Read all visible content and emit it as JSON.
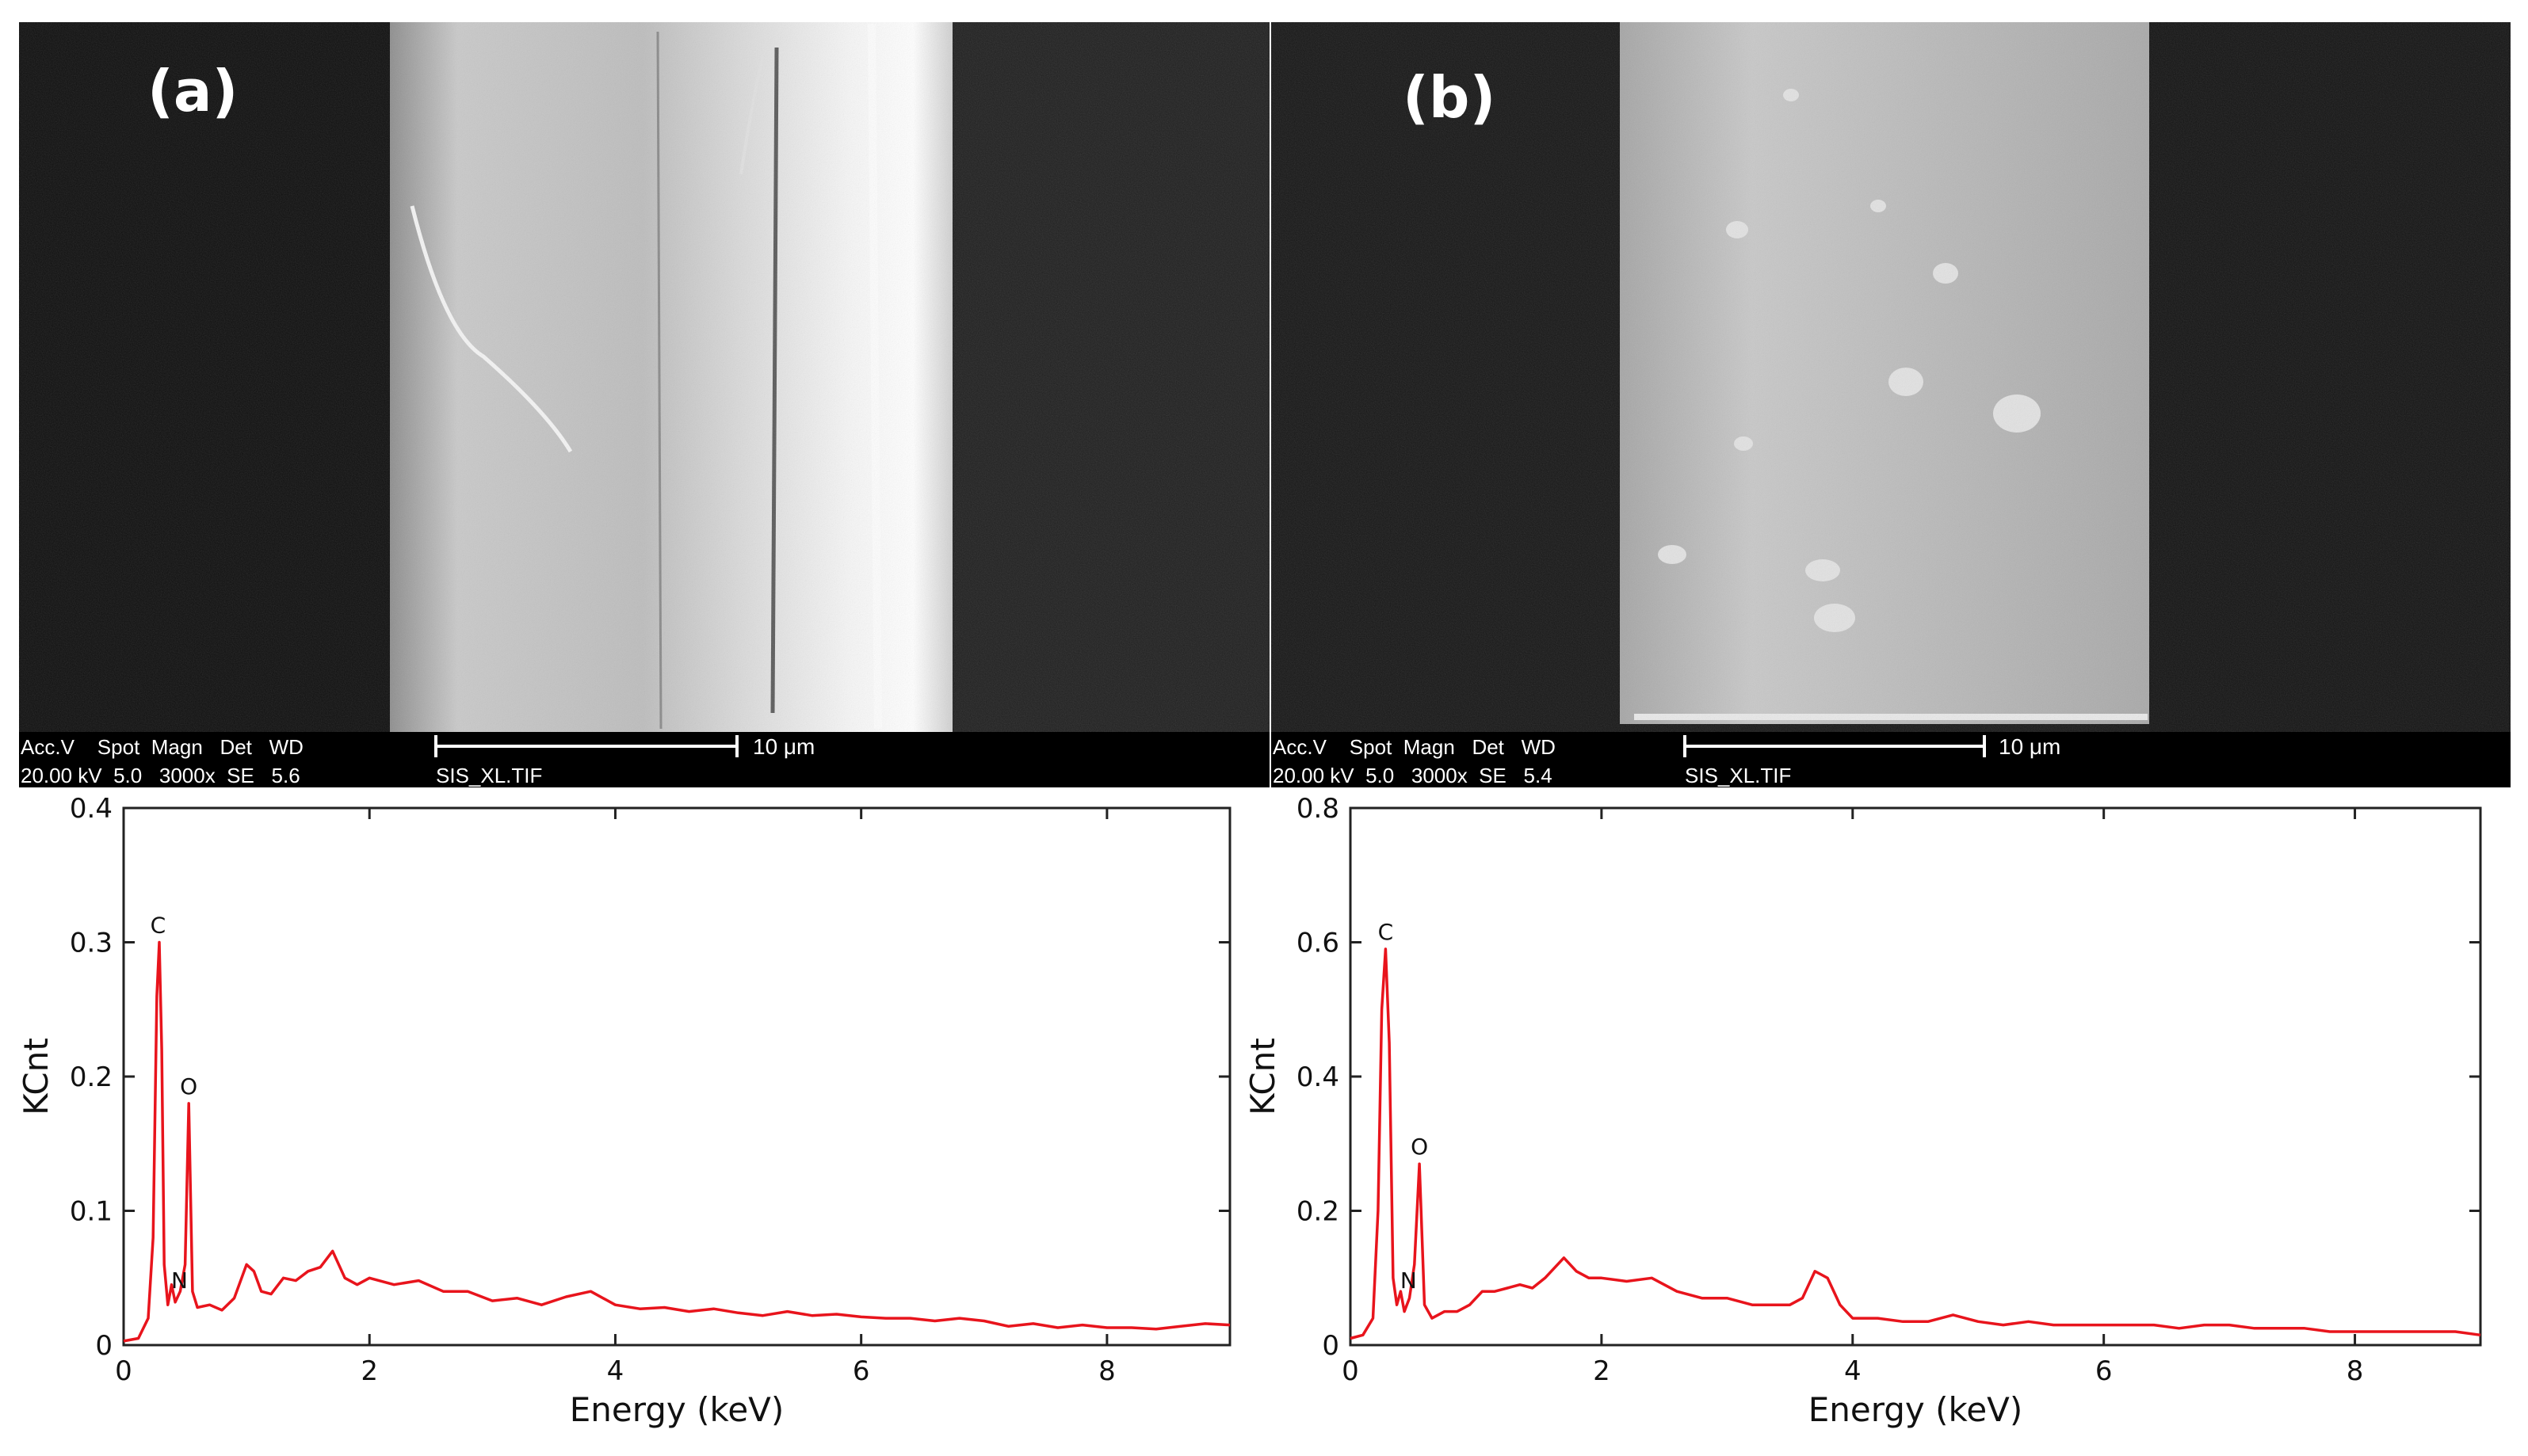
{
  "panels": [
    {
      "label": "(a)",
      "sem_info": {
        "header_line": "Acc.V    Spot  Magn   Det   WD",
        "value_line": "20.00 kV  5.0   3000x  SE   5.6",
        "scale_text": "10 μm",
        "file_text": "SIS_XL.TIF"
      }
    },
    {
      "label": "(b)",
      "sem_info": {
        "header_line": "Acc.V    Spot  Magn   Det   WD",
        "value_line": "20.00 kV  5.0   3000x  SE   5.4",
        "scale_text": "10 μm",
        "file_text": "SIS_XL.TIF"
      }
    }
  ],
  "chart_data": [
    {
      "type": "line",
      "title": "",
      "xlabel": "Energy (keV)",
      "ylabel": "KCnt",
      "xlim": [
        0,
        9
      ],
      "ylim": [
        0,
        0.4
      ],
      "xticks": [
        0,
        2,
        4,
        6,
        8
      ],
      "xtick_labels": [
        "0",
        "2",
        "4",
        "6",
        "8"
      ],
      "yticks": [
        0,
        0.1,
        0.2,
        0.3,
        0.4
      ],
      "ytick_labels": [
        "0",
        "0.1",
        "0.2",
        "0.3",
        "0.4"
      ],
      "line_color": "#e8141c",
      "peaks": [
        {
          "label": "C",
          "x": 0.28,
          "y": 0.3
        },
        {
          "label": "N",
          "x": 0.39,
          "y": 0.04
        },
        {
          "label": "O",
          "x": 0.53,
          "y": 0.18
        }
      ],
      "series": [
        {
          "x": [
            0,
            0.12,
            0.2,
            0.24,
            0.27,
            0.29,
            0.31,
            0.33,
            0.36,
            0.39,
            0.42,
            0.46,
            0.5,
            0.53,
            0.56,
            0.6,
            0.7,
            0.8,
            0.9,
            1.0,
            1.06,
            1.12,
            1.2,
            1.3,
            1.4,
            1.5,
            1.6,
            1.7,
            1.8,
            1.9,
            2.0,
            2.2,
            2.4,
            2.6,
            2.8,
            3.0,
            3.2,
            3.4,
            3.6,
            3.8,
            4.0,
            4.2,
            4.4,
            4.6,
            4.8,
            5.0,
            5.2,
            5.4,
            5.6,
            5.8,
            6.0,
            6.2,
            6.4,
            6.6,
            6.8,
            7.0,
            7.2,
            7.4,
            7.6,
            7.8,
            8.0,
            8.2,
            8.4,
            8.6,
            8.8,
            9.0
          ],
          "y": [
            0.003,
            0.005,
            0.02,
            0.08,
            0.26,
            0.3,
            0.22,
            0.06,
            0.03,
            0.045,
            0.032,
            0.04,
            0.06,
            0.18,
            0.04,
            0.028,
            0.03,
            0.026,
            0.035,
            0.06,
            0.055,
            0.04,
            0.038,
            0.05,
            0.048,
            0.055,
            0.058,
            0.07,
            0.05,
            0.045,
            0.05,
            0.045,
            0.048,
            0.04,
            0.04,
            0.033,
            0.035,
            0.03,
            0.036,
            0.04,
            0.03,
            0.027,
            0.028,
            0.025,
            0.027,
            0.024,
            0.022,
            0.025,
            0.022,
            0.023,
            0.021,
            0.02,
            0.02,
            0.018,
            0.02,
            0.018,
            0.014,
            0.016,
            0.013,
            0.015,
            0.013,
            0.013,
            0.012,
            0.014,
            0.016,
            0.015
          ]
        }
      ]
    },
    {
      "type": "line",
      "title": "",
      "xlabel": "Energy (keV)",
      "ylabel": "KCnt",
      "xlim": [
        0,
        9
      ],
      "ylim": [
        0,
        0.8
      ],
      "xticks": [
        0,
        2,
        4,
        6,
        8
      ],
      "xtick_labels": [
        "0",
        "2",
        "4",
        "6",
        "8"
      ],
      "yticks": [
        0,
        0.2,
        0.4,
        0.6,
        0.8
      ],
      "ytick_labels": [
        "0",
        "0.2",
        "0.4",
        "0.6",
        "0.8"
      ],
      "line_color": "#e8141c",
      "peaks": [
        {
          "label": "C",
          "x": 0.28,
          "y": 0.59
        },
        {
          "label": "N",
          "x": 0.4,
          "y": 0.08
        },
        {
          "label": "O",
          "x": 0.55,
          "y": 0.27
        }
      ],
      "series": [
        {
          "x": [
            0,
            0.1,
            0.18,
            0.22,
            0.25,
            0.28,
            0.31,
            0.34,
            0.37,
            0.4,
            0.43,
            0.47,
            0.51,
            0.55,
            0.59,
            0.65,
            0.75,
            0.85,
            0.95,
            1.05,
            1.15,
            1.25,
            1.35,
            1.45,
            1.55,
            1.7,
            1.8,
            1.9,
            2.0,
            2.2,
            2.4,
            2.6,
            2.8,
            3.0,
            3.2,
            3.4,
            3.5,
            3.6,
            3.7,
            3.75,
            3.8,
            3.9,
            4.0,
            4.2,
            4.4,
            4.6,
            4.8,
            5.0,
            5.2,
            5.4,
            5.6,
            5.8,
            6.0,
            6.2,
            6.4,
            6.6,
            6.8,
            7.0,
            7.2,
            7.4,
            7.6,
            7.8,
            8.0,
            8.2,
            8.4,
            8.6,
            8.8,
            9.0
          ],
          "y": [
            0.01,
            0.015,
            0.04,
            0.2,
            0.5,
            0.59,
            0.45,
            0.1,
            0.06,
            0.08,
            0.05,
            0.07,
            0.12,
            0.27,
            0.06,
            0.04,
            0.05,
            0.05,
            0.06,
            0.08,
            0.08,
            0.085,
            0.09,
            0.085,
            0.1,
            0.13,
            0.11,
            0.1,
            0.1,
            0.095,
            0.1,
            0.08,
            0.07,
            0.07,
            0.06,
            0.06,
            0.06,
            0.07,
            0.11,
            0.105,
            0.1,
            0.06,
            0.04,
            0.04,
            0.035,
            0.035,
            0.045,
            0.035,
            0.03,
            0.035,
            0.03,
            0.03,
            0.03,
            0.03,
            0.03,
            0.025,
            0.03,
            0.03,
            0.025,
            0.025,
            0.025,
            0.02,
            0.02,
            0.02,
            0.02,
            0.02,
            0.02,
            0.015
          ]
        }
      ]
    }
  ]
}
